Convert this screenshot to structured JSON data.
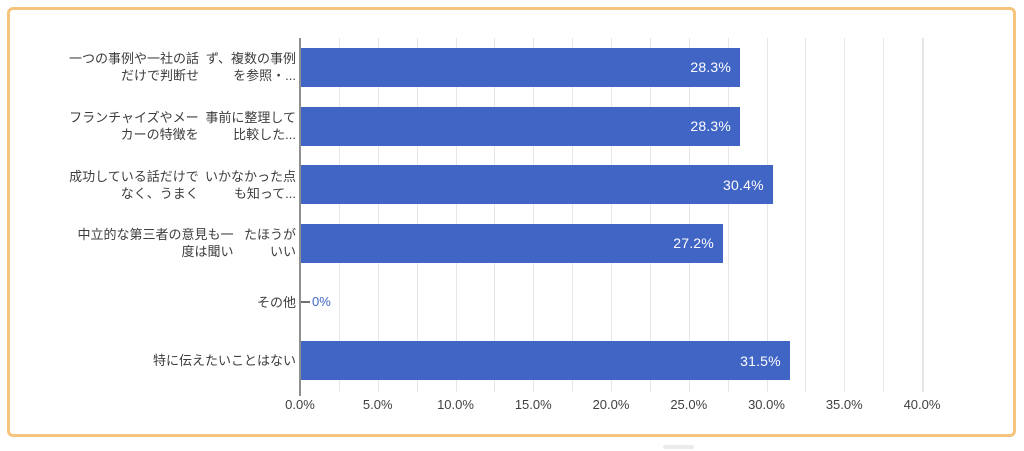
{
  "frame": {
    "border_color": "#F6C47C",
    "background": "#ffffff"
  },
  "chart_data": {
    "type": "bar",
    "orientation": "horizontal",
    "title": "",
    "categories": [
      "一つの事例や一社の話だけで判断せず、複数の事例を参照・...",
      "フランチャイズやメーカーの特徴を事前に整理して比較した...",
      "成功している話だけでなく、うまくいかなかった点も知って...",
      "中立的な第三者の意見も一度は聞いたほうがいい",
      "その他",
      "特に伝えたいことはない"
    ],
    "category_display_lines": [
      [
        "一つの事例や一社の話だけで判断せ",
        "ず、複数の事例を参照・..."
      ],
      [
        "フランチャイズやメーカーの特徴を",
        "事前に整理して比較した..."
      ],
      [
        "成功している話だけでなく、うまく",
        "いかなかった点も知って..."
      ],
      [
        "中立的な第三者の意見も一度は聞い",
        "たほうがいい"
      ],
      [
        "その他"
      ],
      [
        "特に伝えたいことはない"
      ]
    ],
    "values": [
      28.3,
      28.3,
      30.4,
      27.2,
      0,
      31.5
    ],
    "value_labels": [
      "28.3%",
      "28.3%",
      "30.4%",
      "27.2%",
      "0%",
      "31.5%"
    ],
    "x_tick_labels": [
      "0.0%",
      "5.0%",
      "10.0%",
      "15.0%",
      "20.0%",
      "25.0%",
      "30.0%",
      "35.0%",
      "40.0%"
    ],
    "x_tick_values": [
      0,
      5,
      10,
      15,
      20,
      25,
      30,
      35,
      40
    ],
    "xlim": [
      0,
      40
    ],
    "gridline_interval": 2.5,
    "grid": true,
    "legend": "none",
    "bar_color": "#4165C5",
    "zero_label_color": "#4165C5",
    "gridline_color": "#e6e6e6",
    "axis_line_color": "#8f8f8f",
    "tick_label_color": "#404040",
    "category_label_color": "#3d3d3d",
    "value_label_color": "#ffffff"
  }
}
